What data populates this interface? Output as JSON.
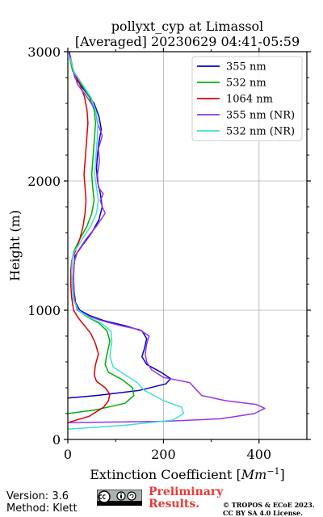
{
  "chart_data": {
    "type": "line",
    "title_line1": "pollyxt_cyp at Limassol",
    "title_line2": "[Averaged] 20230629 04:41-05:59",
    "xlabel": "Extinction Coefficient [Mm⁻¹]",
    "ylabel": "Height (m)",
    "xlim": [
      0,
      500
    ],
    "ylim": [
      0,
      3000
    ],
    "xticks": [
      0,
      200,
      400
    ],
    "yticks": [
      0,
      1000,
      2000,
      3000
    ],
    "grid": true,
    "legend_position": "top-right",
    "series": [
      {
        "name": "355 nm",
        "color": "#0000cc",
        "points": [
          [
            0,
            320
          ],
          [
            60,
            340
          ],
          [
            150,
            380
          ],
          [
            205,
            430
          ],
          [
            215,
            470
          ],
          [
            195,
            520
          ],
          [
            165,
            580
          ],
          [
            155,
            640
          ],
          [
            160,
            700
          ],
          [
            165,
            780
          ],
          [
            155,
            840
          ],
          [
            120,
            880
          ],
          [
            75,
            920
          ],
          [
            45,
            960
          ],
          [
            25,
            1000
          ],
          [
            16,
            1060
          ],
          [
            13,
            1150
          ],
          [
            12,
            1250
          ],
          [
            13,
            1350
          ],
          [
            15,
            1420
          ],
          [
            30,
            1500
          ],
          [
            50,
            1600
          ],
          [
            65,
            1700
          ],
          [
            72,
            1800
          ],
          [
            68,
            1900
          ],
          [
            62,
            2000
          ],
          [
            60,
            2100
          ],
          [
            62,
            2200
          ],
          [
            65,
            2300
          ],
          [
            70,
            2400
          ],
          [
            65,
            2500
          ],
          [
            55,
            2600
          ],
          [
            35,
            2700
          ],
          [
            15,
            2800
          ],
          [
            8,
            2900
          ],
          [
            3,
            3000
          ]
        ]
      },
      {
        "name": "532 nm",
        "color": "#00b000",
        "points": [
          [
            0,
            200
          ],
          [
            60,
            230
          ],
          [
            120,
            280
          ],
          [
            138,
            340
          ],
          [
            135,
            400
          ],
          [
            115,
            460
          ],
          [
            85,
            520
          ],
          [
            78,
            580
          ],
          [
            82,
            660
          ],
          [
            88,
            760
          ],
          [
            82,
            840
          ],
          [
            65,
            900
          ],
          [
            40,
            950
          ],
          [
            22,
            1000
          ],
          [
            12,
            1080
          ],
          [
            9,
            1200
          ],
          [
            8,
            1300
          ],
          [
            9,
            1380
          ],
          [
            12,
            1450
          ],
          [
            25,
            1550
          ],
          [
            40,
            1650
          ],
          [
            50,
            1750
          ],
          [
            55,
            1850
          ],
          [
            52,
            1950
          ],
          [
            50,
            2050
          ],
          [
            52,
            2150
          ],
          [
            54,
            2250
          ],
          [
            56,
            2350
          ],
          [
            58,
            2450
          ],
          [
            55,
            2550
          ],
          [
            45,
            2650
          ],
          [
            28,
            2750
          ],
          [
            10,
            2850
          ],
          [
            4,
            2950
          ]
        ]
      },
      {
        "name": "1064 nm",
        "color": "#dd0000",
        "points": [
          [
            0,
            130
          ],
          [
            45,
            180
          ],
          [
            75,
            250
          ],
          [
            85,
            300
          ],
          [
            88,
            350
          ],
          [
            78,
            400
          ],
          [
            60,
            450
          ],
          [
            55,
            500
          ],
          [
            58,
            580
          ],
          [
            64,
            660
          ],
          [
            58,
            740
          ],
          [
            48,
            820
          ],
          [
            35,
            880
          ],
          [
            22,
            940
          ],
          [
            12,
            1000
          ],
          [
            8,
            1100
          ],
          [
            6,
            1200
          ],
          [
            6,
            1300
          ],
          [
            8,
            1380
          ],
          [
            15,
            1450
          ],
          [
            25,
            1550
          ],
          [
            32,
            1650
          ],
          [
            36,
            1750
          ],
          [
            38,
            1850
          ],
          [
            36,
            1950
          ],
          [
            34,
            2050
          ],
          [
            36,
            2150
          ],
          [
            38,
            2250
          ],
          [
            40,
            2350
          ],
          [
            42,
            2450
          ],
          [
            40,
            2550
          ],
          [
            35,
            2650
          ],
          [
            25,
            2750
          ],
          [
            12,
            2850
          ],
          [
            5,
            2950
          ]
        ]
      },
      {
        "name": "355 nm (NR)",
        "color": "#9933ee",
        "points": [
          [
            0,
            130
          ],
          [
            200,
            140
          ],
          [
            320,
            160
          ],
          [
            390,
            200
          ],
          [
            412,
            240
          ],
          [
            395,
            270
          ],
          [
            330,
            300
          ],
          [
            280,
            340
          ],
          [
            270,
            380
          ],
          [
            255,
            440
          ],
          [
            200,
            480
          ],
          [
            175,
            540
          ],
          [
            165,
            600
          ],
          [
            162,
            660
          ],
          [
            165,
            740
          ],
          [
            170,
            800
          ],
          [
            150,
            850
          ],
          [
            110,
            880
          ],
          [
            70,
            920
          ],
          [
            40,
            960
          ],
          [
            20,
            1000
          ],
          [
            14,
            1080
          ],
          [
            12,
            1200
          ],
          [
            12,
            1300
          ],
          [
            14,
            1380
          ],
          [
            20,
            1450
          ],
          [
            38,
            1550
          ],
          [
            60,
            1650
          ],
          [
            78,
            1750
          ],
          [
            72,
            1800
          ],
          [
            68,
            1850
          ],
          [
            74,
            1900
          ],
          [
            64,
            1950
          ],
          [
            62,
            2050
          ],
          [
            66,
            2150
          ],
          [
            64,
            2250
          ],
          [
            72,
            2350
          ],
          [
            62,
            2450
          ],
          [
            58,
            2550
          ],
          [
            40,
            2650
          ],
          [
            20,
            2750
          ],
          [
            12,
            2850
          ],
          [
            6,
            2950
          ]
        ]
      },
      {
        "name": "532 nm (NR)",
        "color": "#40e0d0",
        "points": [
          [
            0,
            80
          ],
          [
            120,
            110
          ],
          [
            220,
            150
          ],
          [
            242,
            200
          ],
          [
            238,
            250
          ],
          [
            200,
            300
          ],
          [
            160,
            380
          ],
          [
            145,
            440
          ],
          [
            120,
            500
          ],
          [
            95,
            560
          ],
          [
            88,
            640
          ],
          [
            92,
            760
          ],
          [
            90,
            840
          ],
          [
            70,
            900
          ],
          [
            42,
            950
          ],
          [
            22,
            1000
          ],
          [
            12,
            1080
          ],
          [
            9,
            1200
          ],
          [
            8,
            1300
          ],
          [
            9,
            1380
          ],
          [
            13,
            1450
          ],
          [
            30,
            1550
          ],
          [
            48,
            1650
          ],
          [
            60,
            1750
          ],
          [
            64,
            1850
          ],
          [
            60,
            1950
          ],
          [
            56,
            2050
          ],
          [
            58,
            2150
          ],
          [
            60,
            2250
          ],
          [
            62,
            2350
          ],
          [
            63,
            2450
          ],
          [
            58,
            2550
          ],
          [
            48,
            2650
          ],
          [
            30,
            2750
          ],
          [
            12,
            2850
          ],
          [
            5,
            2950
          ]
        ]
      }
    ]
  },
  "footer": {
    "version": "Version: 3.6",
    "method": "Method: Klett",
    "prelim_line1": "Preliminary",
    "prelim_line2": "Results.",
    "copyright_line1": "© TROPOS & ECoE 2023.",
    "copyright_line2": "CC BY SA 4.0 License.",
    "cc_badge": "cc-by-sa-icon"
  }
}
